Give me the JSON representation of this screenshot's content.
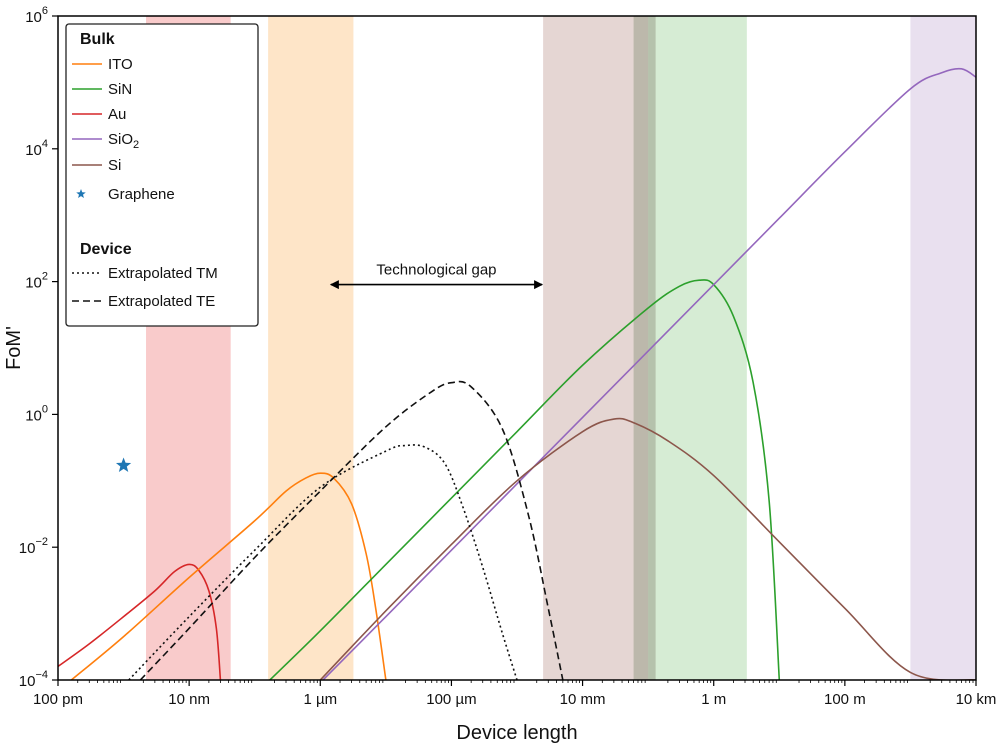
{
  "chart_data": {
    "type": "line",
    "xlabel": "Device length",
    "ylabel": "FoM'",
    "x_scale": "log",
    "y_scale": "log",
    "xlim": [
      1e-10,
      10000
    ],
    "ylim": [
      0.0001,
      1000000
    ],
    "x_ticks": [
      {
        "value": 1e-10,
        "label": "100 pm"
      },
      {
        "value": 1e-08,
        "label": "10 nm"
      },
      {
        "value": 1e-06,
        "label": "1 µm"
      },
      {
        "value": 0.0001,
        "label": "100 µm"
      },
      {
        "value": 0.01,
        "label": "10 mm"
      },
      {
        "value": 1,
        "label": "1 m"
      },
      {
        "value": 100,
        "label": "100 m"
      },
      {
        "value": 10000,
        "label": "10 km"
      }
    ],
    "y_ticks": [
      {
        "value": 0.0001,
        "base": "10",
        "exp": "−4"
      },
      {
        "value": 0.01,
        "base": "10",
        "exp": "−2"
      },
      {
        "value": 1,
        "base": "10",
        "exp": "0"
      },
      {
        "value": 100,
        "base": "10",
        "exp": "2"
      },
      {
        "value": 10000,
        "base": "10",
        "exp": "4"
      },
      {
        "value": 1000000,
        "base": "10",
        "exp": "6"
      }
    ],
    "grid": false,
    "legend_position": "top-left",
    "legend": {
      "bulk_heading": "Bulk",
      "device_heading": "Device",
      "entries": [
        {
          "key": "ito",
          "label": "ITO"
        },
        {
          "key": "sin",
          "label": "SiN"
        },
        {
          "key": "au",
          "label": "Au"
        },
        {
          "key": "sio2",
          "label": "SiO",
          "sub": "2"
        },
        {
          "key": "si",
          "label": "Si"
        },
        {
          "key": "graphene",
          "label": "Graphene"
        },
        {
          "key": "tm",
          "label": "Extrapolated TM"
        },
        {
          "key": "te",
          "label": "Extrapolated TE"
        }
      ]
    },
    "annotation": {
      "text": "Technological gap",
      "x_from": 1.4e-06,
      "x_to": 0.0025,
      "y": 100
    },
    "bands": [
      {
        "key": "au",
        "x": [
          2.2e-09,
          4.3e-08
        ],
        "color": "#f7b9b9"
      },
      {
        "key": "ito",
        "x": [
          1.6e-07,
          3.2e-06
        ],
        "color": "#fddcb6"
      },
      {
        "key": "si",
        "x": [
          0.0025,
          0.1
        ],
        "color": "#dcc8c4"
      },
      {
        "key": "sin",
        "x": [
          0.1,
          3.2
        ],
        "color": "#c8e6c6"
      },
      {
        "key": "sio2",
        "x": [
          1000,
          10000
        ],
        "color": "#e2d5ea"
      }
    ],
    "series": [
      {
        "key": "au",
        "color": "#d62728",
        "dash": "",
        "width": 1.6,
        "points": [
          [
            1e-10,
            0.00016
          ],
          [
            3e-10,
            0.00035
          ],
          [
            1e-09,
            0.0009
          ],
          [
            3e-09,
            0.0022
          ],
          [
            6e-09,
            0.0043
          ],
          [
            1e-08,
            0.0055
          ],
          [
            1.4e-08,
            0.0045
          ],
          [
            2e-08,
            0.0022
          ],
          [
            2.6e-08,
            0.0006
          ],
          [
            3e-08,
            0.0001
          ]
        ]
      },
      {
        "key": "ito",
        "color": "#ff7f0e",
        "dash": "",
        "width": 1.6,
        "points": [
          [
            1.6e-10,
            0.0001
          ],
          [
            1e-09,
            0.00045
          ],
          [
            1e-08,
            0.0035
          ],
          [
            1e-07,
            0.025
          ],
          [
            3e-07,
            0.07
          ],
          [
            6e-07,
            0.11
          ],
          [
            1e-06,
            0.13
          ],
          [
            1.6e-06,
            0.11
          ],
          [
            3e-06,
            0.045
          ],
          [
            5e-06,
            0.008
          ],
          [
            7e-06,
            0.0012
          ],
          [
            1e-05,
            0.0001
          ]
        ]
      },
      {
        "key": "sin",
        "color": "#2ca02c",
        "dash": "",
        "width": 1.6,
        "points": [
          [
            1.7e-07,
            0.0001
          ],
          [
            1e-06,
            0.00055
          ],
          [
            1e-05,
            0.0055
          ],
          [
            0.0001,
            0.055
          ],
          [
            0.001,
            0.55
          ],
          [
            0.01,
            5.5
          ],
          [
            0.1,
            40
          ],
          [
            0.3,
            85
          ],
          [
            0.6,
            105
          ],
          [
            1,
            90
          ],
          [
            2,
            30
          ],
          [
            4,
            3
          ],
          [
            7,
            0.05
          ],
          [
            10,
            0.0001
          ]
        ]
      },
      {
        "key": "sio2",
        "color": "#9467bd",
        "dash": "",
        "width": 1.6,
        "points": [
          [
            1.1e-06,
            0.0001
          ],
          [
            1e-05,
            0.0009
          ],
          [
            0.0001,
            0.009
          ],
          [
            0.001,
            0.09
          ],
          [
            0.01,
            0.9
          ],
          [
            0.1,
            9
          ],
          [
            1,
            90
          ],
          [
            10,
            900
          ],
          [
            100,
            9000
          ],
          [
            1000,
            80000
          ],
          [
            3000,
            140000
          ],
          [
            6000,
            160000
          ],
          [
            10000,
            120000
          ]
        ]
      },
      {
        "key": "si",
        "color": "#8c564b",
        "dash": "",
        "width": 1.6,
        "points": [
          [
            1e-06,
            0.0001
          ],
          [
            1e-05,
            0.0011
          ],
          [
            0.0001,
            0.011
          ],
          [
            0.001,
            0.1
          ],
          [
            0.01,
            0.55
          ],
          [
            0.03,
            0.85
          ],
          [
            0.06,
            0.75
          ],
          [
            0.2,
            0.4
          ],
          [
            1,
            0.12
          ],
          [
            10,
            0.012
          ],
          [
            100,
            0.0012
          ],
          [
            1000,
            0.00013
          ],
          [
            10000,
            0.0001
          ]
        ]
      },
      {
        "key": "tm",
        "color": "#111111",
        "dash": "2,3",
        "width": 1.6,
        "points": [
          [
            1.2e-09,
            0.0001
          ],
          [
            1e-08,
            0.0009
          ],
          [
            1e-07,
            0.009
          ],
          [
            1e-06,
            0.08
          ],
          [
            1e-05,
            0.28
          ],
          [
            2e-05,
            0.34
          ],
          [
            4e-05,
            0.32
          ],
          [
            8e-05,
            0.18
          ],
          [
            0.00015,
            0.04
          ],
          [
            0.0003,
            0.005
          ],
          [
            0.0006,
            0.0005
          ],
          [
            0.001,
            0.0001
          ]
        ]
      },
      {
        "key": "te",
        "color": "#111111",
        "dash": "7,4",
        "width": 1.6,
        "points": [
          [
            1.8e-09,
            0.0001
          ],
          [
            1e-08,
            0.0006
          ],
          [
            1e-07,
            0.007
          ],
          [
            1e-06,
            0.07
          ],
          [
            1e-05,
            0.65
          ],
          [
            5e-05,
            2.2
          ],
          [
            0.0001,
            3
          ],
          [
            0.0002,
            2.6
          ],
          [
            0.0006,
            0.6
          ],
          [
            0.0015,
            0.03
          ],
          [
            0.003,
            0.0012
          ],
          [
            0.005,
            0.0001
          ]
        ]
      }
    ],
    "points": [
      {
        "key": "graphene",
        "x": 1e-09,
        "y": 0.17,
        "color": "#1f77b4"
      }
    ]
  }
}
